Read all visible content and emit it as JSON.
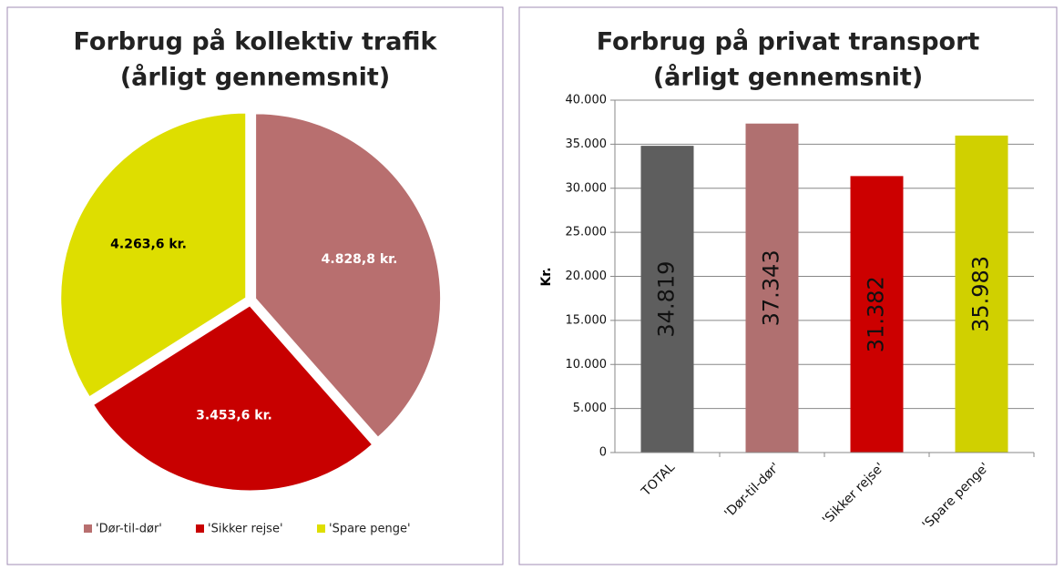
{
  "chart_data": [
    {
      "type": "pie",
      "title": [
        "Forbrug på kollektiv trafik",
        "(årligt gennemsnit)"
      ],
      "categories": [
        "'Dør-til-dør'",
        "'Sikker rejse'",
        "'Spare penge'"
      ],
      "values": [
        4828.8,
        3453.6,
        4263.6
      ],
      "value_labels": [
        "4.828,8  kr.",
        "3.453,6  kr.",
        "4.263,6  kr."
      ],
      "colors": [
        "#b86f6f",
        "#c80000",
        "#dede00"
      ],
      "label_colors": [
        "#ffffff",
        "#ffffff",
        "#000000"
      ],
      "legend": "bottom"
    },
    {
      "type": "bar",
      "title": [
        "Forbrug på privat transport",
        "(årligt gennemsnit)"
      ],
      "ylabel": "Kr.",
      "categories": [
        "TOTAL",
        "'Dør-til-dør'",
        "'Sikker rejse'",
        "'Spare penge'"
      ],
      "values": [
        34819,
        37343,
        31382,
        35983
      ],
      "value_labels": [
        "34.819",
        "37.343",
        "31.382",
        "35.983"
      ],
      "colors": [
        "#5e5e5e",
        "#b07070",
        "#cc0000",
        "#d0d000"
      ],
      "ylim": [
        0,
        40000
      ],
      "yticks": [
        0,
        {
          "value": 5000,
          "label": "5.000"
        },
        {
          "value": 10000,
          "label": "10.000"
        },
        {
          "value": 15000,
          "label": "15.000"
        },
        {
          "value": 20000,
          "label": "20.000"
        },
        {
          "value": 25000,
          "label": "25.000"
        },
        {
          "value": 30000,
          "label": "30.000"
        },
        {
          "value": 35000,
          "label": "35.000"
        },
        {
          "value": 40000,
          "label": "40.000"
        }
      ],
      "grid": true
    }
  ]
}
